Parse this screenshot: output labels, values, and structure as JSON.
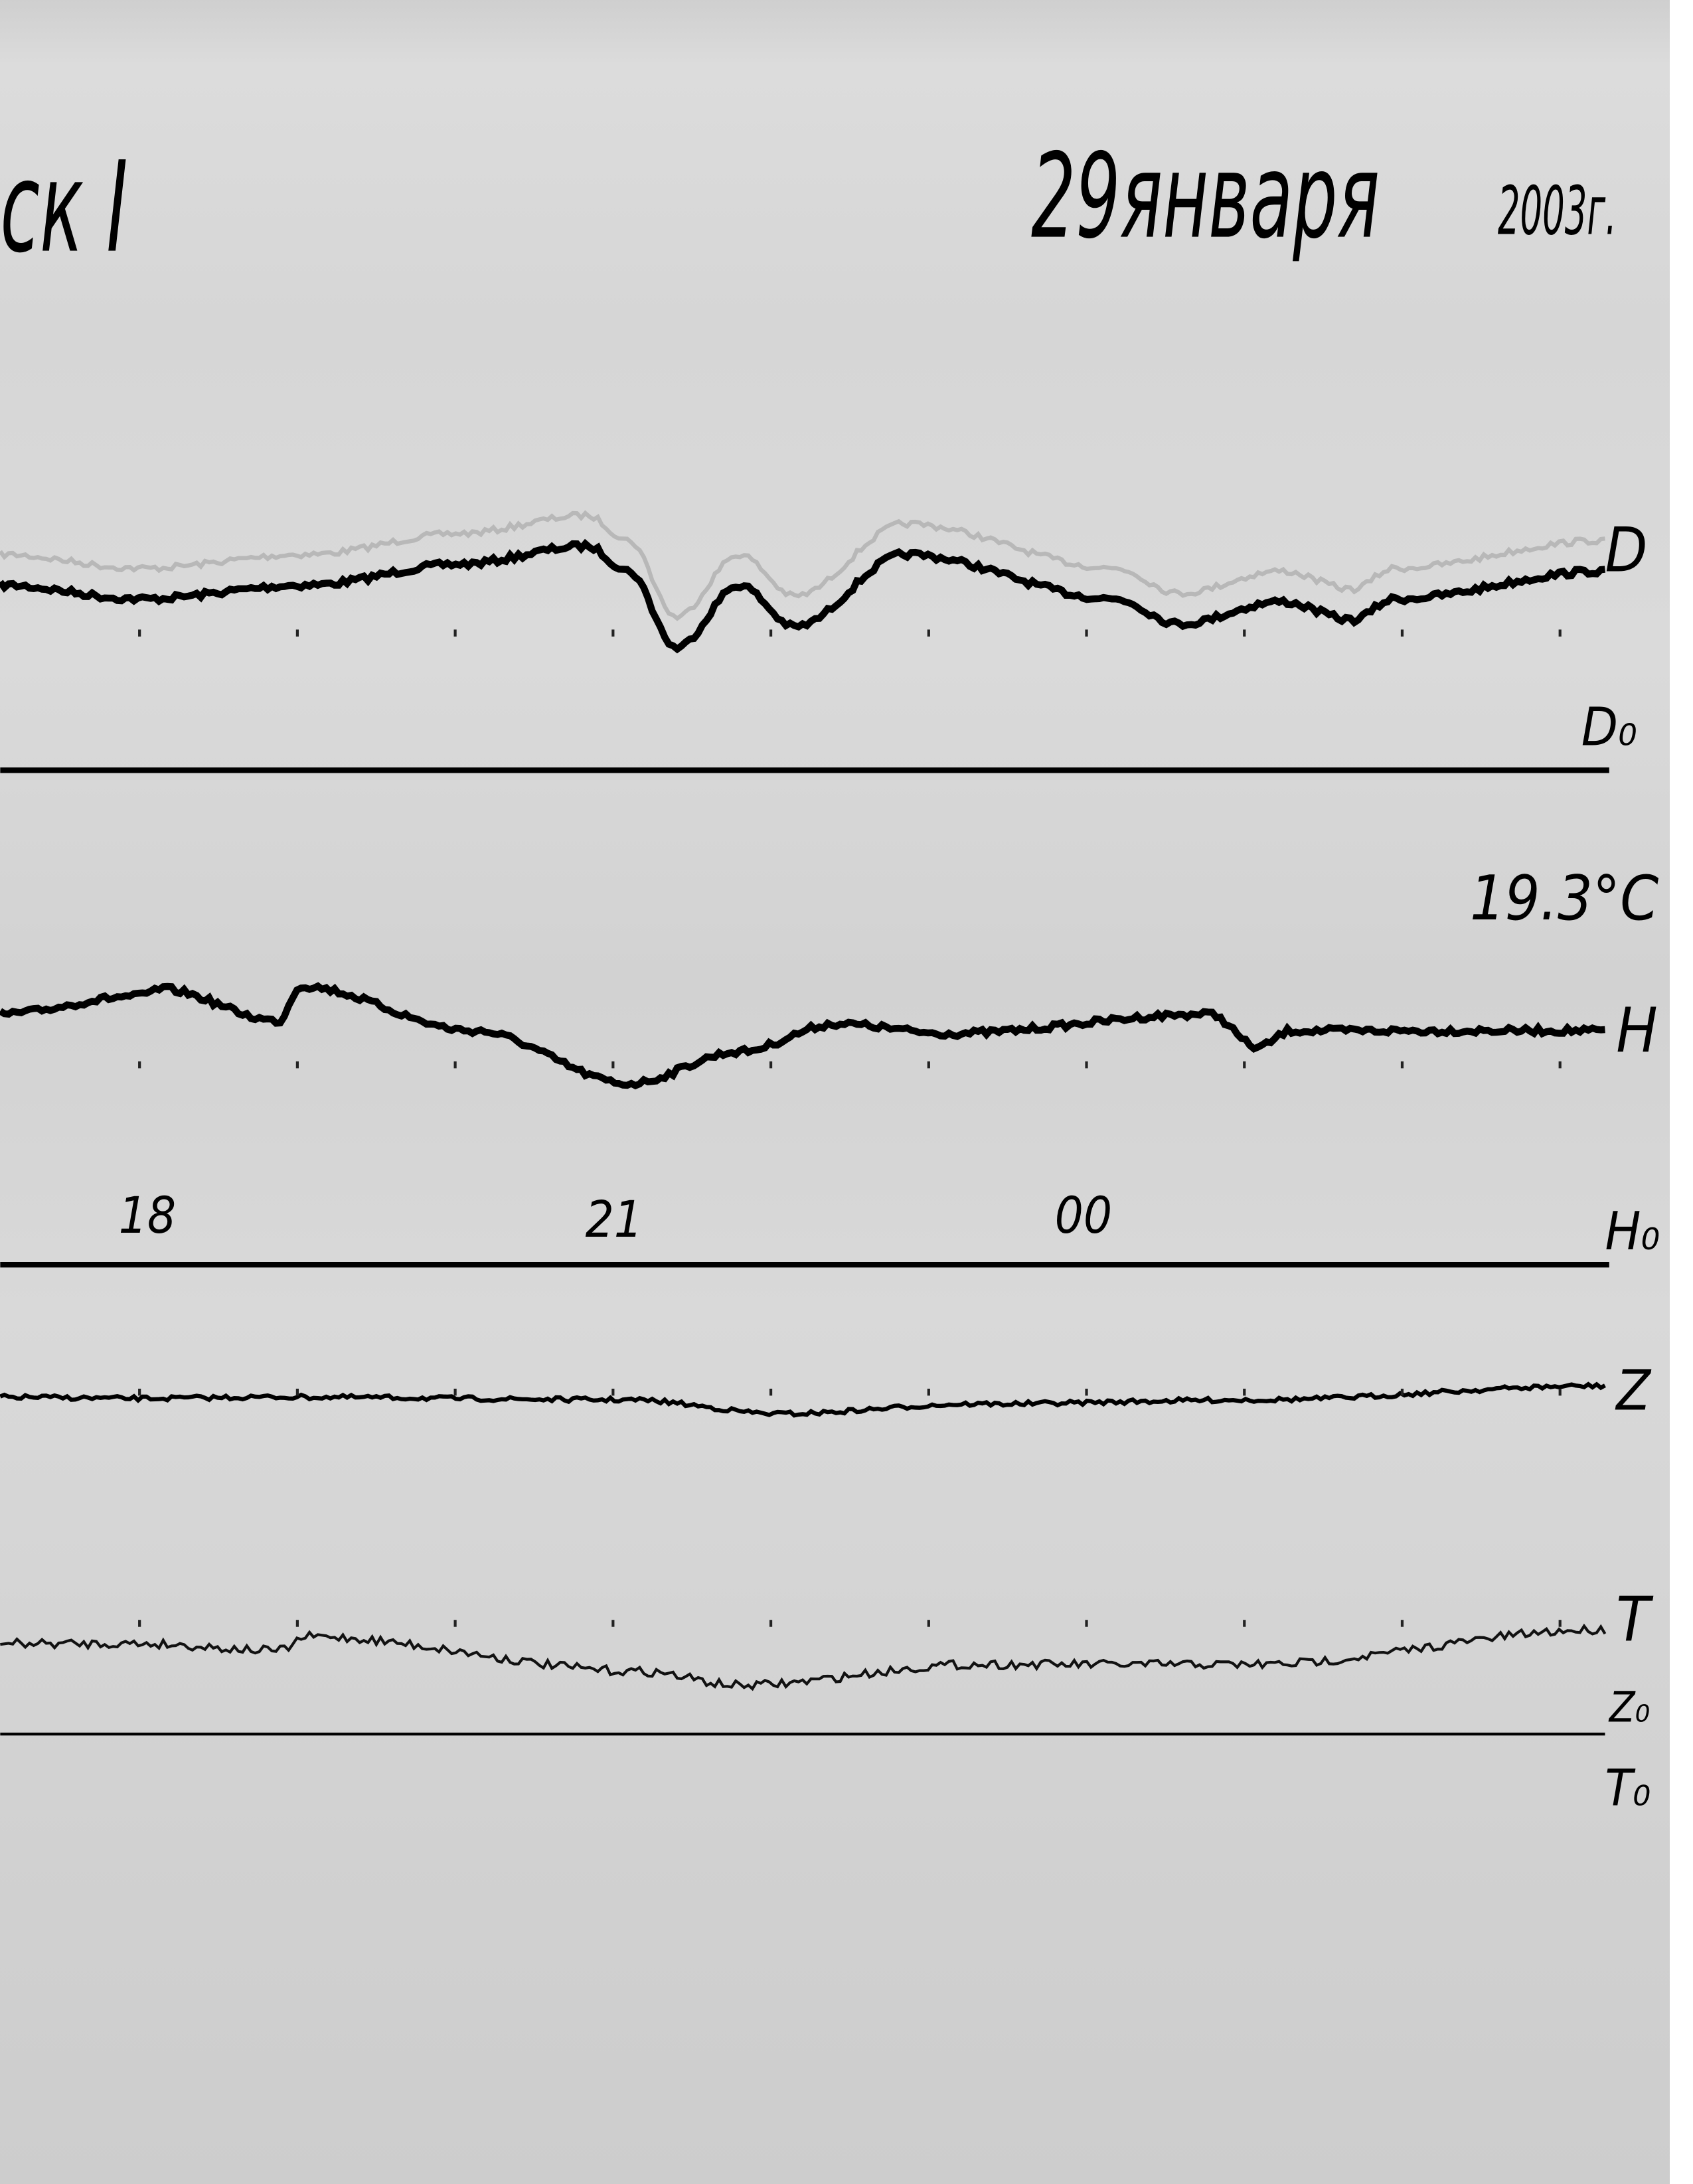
{
  "header": {
    "station": "ск I",
    "date": "29января",
    "year": "2003г."
  },
  "temperature": "19.3°C",
  "channel_labels": {
    "D": "D",
    "D0": "D₀",
    "H": "H",
    "H0": "H₀",
    "Z": "Z",
    "T": "T",
    "Z0": "Z₀",
    "T0": "T₀"
  },
  "chart_data": {
    "type": "line",
    "title": "",
    "xlabel": "",
    "ylabel": "",
    "x_tick_labels": [
      "18",
      "21",
      "00"
    ],
    "x_tick_hours": [
      18,
      21,
      0
    ],
    "x_range": [
      "17:07",
      "03:16"
    ],
    "grid": false,
    "y_units": "relative deflection from baseline (unlabeled)",
    "line_color": "#000000",
    "series": [
      {
        "name": "D",
        "baseline": "D₀",
        "points": [
          [
            "17:07",
            50
          ],
          [
            "18:00",
            40
          ],
          [
            "19:04",
            50
          ],
          [
            "20:02",
            65
          ],
          [
            "20:50",
            78
          ],
          [
            "21:06",
            60
          ],
          [
            "21:24",
            5
          ],
          [
            "21:48",
            50
          ],
          [
            "22:09",
            20
          ],
          [
            "22:51",
            72
          ],
          [
            "00:11",
            40
          ],
          [
            "00:35",
            22
          ],
          [
            "01:14",
            38
          ],
          [
            "01:41",
            25
          ],
          [
            "01:57",
            40
          ],
          [
            "03:16",
            60
          ]
        ]
      },
      {
        "name": "H",
        "baseline": "H₀",
        "points": [
          [
            "17:07",
            52
          ],
          [
            "18:00",
            65
          ],
          [
            "18:08",
            70
          ],
          [
            "18:53",
            47
          ],
          [
            "19:01",
            72
          ],
          [
            "20:07",
            40
          ],
          [
            "21:06",
            2
          ],
          [
            "21:48",
            25
          ],
          [
            "22:25",
            45
          ],
          [
            "23:07",
            38
          ],
          [
            "00:47",
            52
          ],
          [
            "01:05",
            28
          ],
          [
            "01:18",
            40
          ],
          [
            "03:16",
            40
          ]
        ]
      },
      {
        "name": "Z",
        "baseline": "Z₀",
        "points": [
          [
            "17:07",
            27
          ],
          [
            "18:00",
            26
          ],
          [
            "18:53",
            27
          ],
          [
            "21:06",
            25
          ],
          [
            "22:04",
            15
          ],
          [
            "23:18",
            22
          ],
          [
            "01:04",
            25
          ],
          [
            "03:16",
            35
          ]
        ]
      },
      {
        "name": "T",
        "baseline": "T₀",
        "points": [
          [
            "17:07",
            40
          ],
          [
            "18:00",
            40
          ],
          [
            "18:53",
            35
          ],
          [
            "19:04",
            45
          ],
          [
            "21:11",
            20
          ],
          [
            "21:48",
            10
          ],
          [
            "23:18",
            25
          ],
          [
            "00:11",
            25
          ],
          [
            "01:04",
            25
          ],
          [
            "03:16",
            50
          ]
        ]
      }
    ]
  }
}
